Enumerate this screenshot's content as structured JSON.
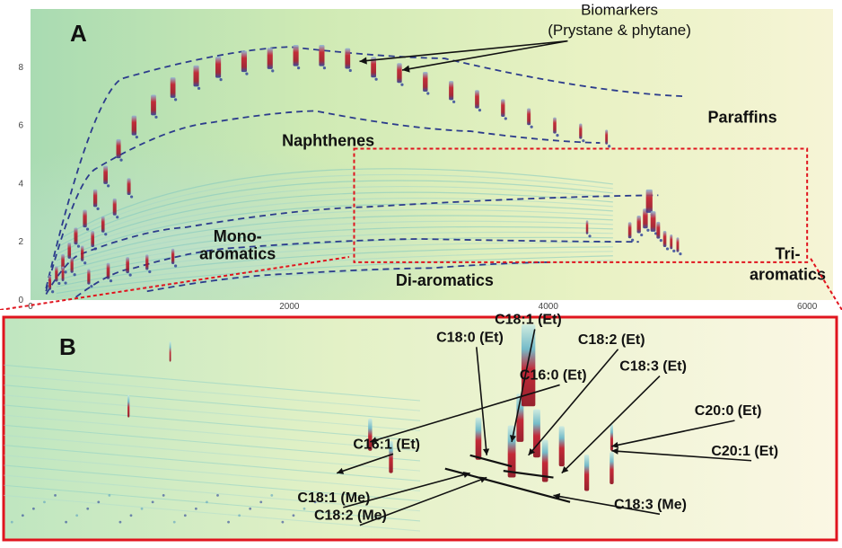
{
  "chart_data": [
    {
      "type": "heatmap",
      "panel_label": "A",
      "x_ticks": [
        "0",
        "2000",
        "4000",
        "6000"
      ],
      "y_ticks": [
        "0",
        "2",
        "4",
        "6",
        "8"
      ],
      "xlim": [
        0,
        6200
      ],
      "ylim": [
        0,
        10
      ],
      "grid": false,
      "colors": {
        "peak_red": "#c0182a",
        "peak_blue": "#2a3f9a",
        "background": "#cfe9b8",
        "dashes_blue": "#2c3c8c",
        "zoom_box": "#e0141e"
      },
      "region_labels": [
        {
          "text": "Biomarkers",
          "x": 4550,
          "y": 9.8
        },
        {
          "text": "(Prystane & phytane)",
          "x": 4550,
          "y": 9.1
        },
        {
          "text": "Paraffins",
          "x": 5500,
          "y": 6.1
        },
        {
          "text": "Naphthenes",
          "x": 2300,
          "y": 5.3
        },
        {
          "text": "Mono-",
          "x": 1600,
          "y": 2.0
        },
        {
          "text": "aromatics",
          "x": 1600,
          "y": 1.4
        },
        {
          "text": "Di-aromatics",
          "x": 3200,
          "y": 0.5
        },
        {
          "text": "Tri-",
          "x": 5850,
          "y": 1.4
        },
        {
          "text": "aromatics",
          "x": 5850,
          "y": 0.7
        }
      ],
      "biomarker_peaks": [
        [
          2500,
          8.2
        ],
        [
          2830,
          7.9
        ]
      ],
      "zoom_region": {
        "x": [
          2500,
          6000
        ],
        "y": [
          1.3,
          5.2
        ]
      },
      "peaks": [
        [
          150,
          0.6,
          0.8
        ],
        [
          200,
          0.9,
          0.9
        ],
        [
          250,
          1.3,
          1.0
        ],
        [
          300,
          1.7,
          1.0
        ],
        [
          350,
          2.2,
          1.1
        ],
        [
          420,
          2.8,
          1.2
        ],
        [
          500,
          3.5,
          1.2
        ],
        [
          580,
          4.3,
          1.3
        ],
        [
          680,
          5.2,
          1.4
        ],
        [
          800,
          6.0,
          1.5
        ],
        [
          950,
          6.7,
          1.6
        ],
        [
          1100,
          7.3,
          1.6
        ],
        [
          1280,
          7.7,
          1.7
        ],
        [
          1450,
          8.0,
          1.7
        ],
        [
          1650,
          8.2,
          1.7
        ],
        [
          1850,
          8.3,
          1.7
        ],
        [
          2050,
          8.4,
          1.7
        ],
        [
          2250,
          8.4,
          1.7
        ],
        [
          2450,
          8.3,
          1.6
        ],
        [
          2650,
          8.0,
          1.6
        ],
        [
          2850,
          7.8,
          1.5
        ],
        [
          3050,
          7.5,
          1.5
        ],
        [
          3250,
          7.2,
          1.4
        ],
        [
          3450,
          6.9,
          1.3
        ],
        [
          3650,
          6.6,
          1.2
        ],
        [
          3850,
          6.3,
          1.1
        ],
        [
          4050,
          6.0,
          1.0
        ],
        [
          4250,
          5.8,
          0.9
        ],
        [
          4450,
          5.6,
          0.8
        ],
        [
          250,
          0.9,
          0.8
        ],
        [
          320,
          1.2,
          0.9
        ],
        [
          400,
          1.6,
          0.9
        ],
        [
          480,
          2.1,
          1.0
        ],
        [
          560,
          2.6,
          1.0
        ],
        [
          650,
          3.2,
          1.1
        ],
        [
          760,
          3.9,
          1.1
        ],
        [
          450,
          0.8,
          0.9
        ],
        [
          600,
          1.0,
          1.0
        ],
        [
          750,
          1.2,
          1.0
        ],
        [
          900,
          1.3,
          0.9
        ],
        [
          1100,
          1.5,
          0.9
        ],
        [
          4630,
          2.4,
          1.0
        ],
        [
          4700,
          2.6,
          1.2
        ],
        [
          4750,
          2.8,
          1.5
        ],
        [
          4780,
          3.4,
          2.0
        ],
        [
          4810,
          2.7,
          1.6
        ],
        [
          4850,
          2.4,
          1.1
        ],
        [
          4900,
          2.1,
          1.0
        ],
        [
          4950,
          2.0,
          0.8
        ],
        [
          5000,
          1.9,
          0.8
        ],
        [
          4300,
          2.5,
          0.7
        ]
      ]
    },
    {
      "type": "heatmap",
      "panel_label": "B",
      "peak_labels": [
        {
          "text": "C16:0 (Et)",
          "x": 70,
          "y": 72
        },
        {
          "text": "C16:1 (Et)",
          "x": 50,
          "y": 41
        },
        {
          "text": "C18:0 (Et)",
          "x": 60,
          "y": 89
        },
        {
          "text": "C18:1 (Et)",
          "x": 67,
          "y": 97
        },
        {
          "text": "C18:2 (Et)",
          "x": 77,
          "y": 88
        },
        {
          "text": "C18:3 (Et)",
          "x": 82,
          "y": 76
        },
        {
          "text": "C20:0 (Et)",
          "x": 91,
          "y": 56
        },
        {
          "text": "C20:1 (Et)",
          "x": 93,
          "y": 38
        },
        {
          "text": "C18:1 (Me)",
          "x": 44,
          "y": 17
        },
        {
          "text": "C18:2 (Me)",
          "x": 46,
          "y": 9
        },
        {
          "text": "C18:3 (Me)",
          "x": 82,
          "y": 14
        }
      ],
      "peaks": [
        [
          44,
          40,
          1.0
        ],
        [
          46.5,
          30,
          1.0
        ],
        [
          57,
          36,
          1.5
        ],
        [
          61,
          28,
          2.0
        ],
        [
          62,
          44,
          1.8
        ],
        [
          63,
          60,
          3.5
        ],
        [
          64,
          37,
          1.8
        ],
        [
          65,
          26,
          1.5
        ],
        [
          67,
          33,
          1.4
        ],
        [
          70,
          22,
          1.2
        ],
        [
          73,
          25,
          1.0
        ],
        [
          15,
          55,
          0.5
        ],
        [
          73,
          40,
          0.7
        ],
        [
          20,
          80,
          0.4
        ]
      ]
    }
  ]
}
